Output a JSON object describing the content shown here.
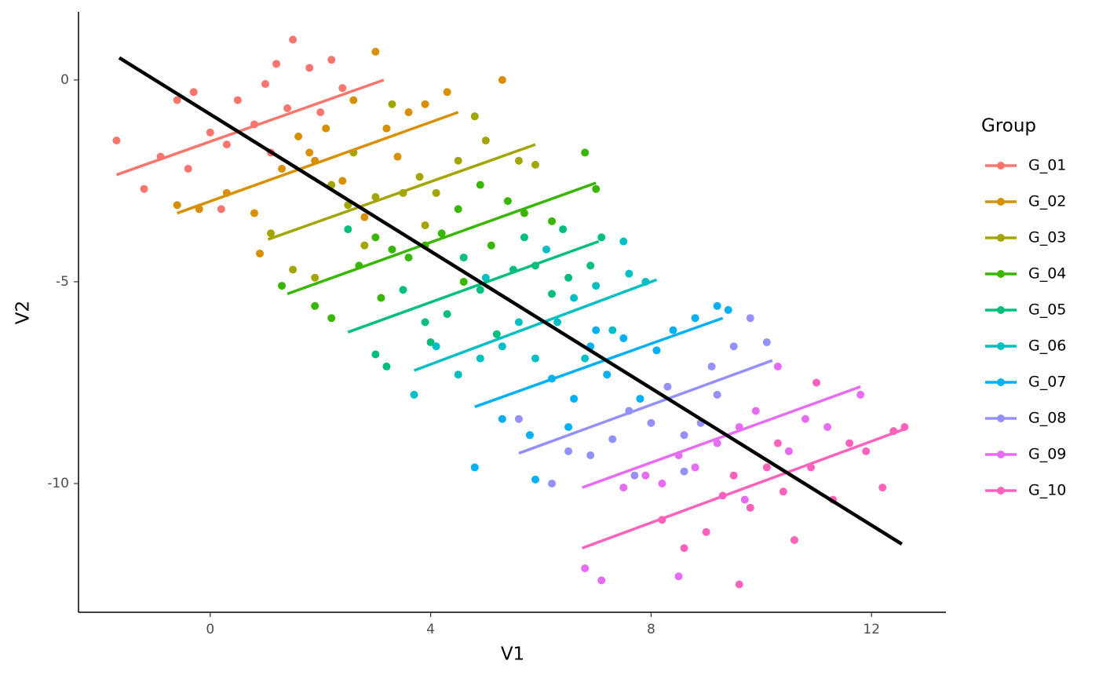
{
  "chart_data": {
    "type": "scatter",
    "x_label": "V1",
    "y_label": "V2",
    "legend_title": "Group",
    "xlim": [
      -2.39,
      13.35
    ],
    "ylim": [
      -13.19,
      1.69
    ],
    "xticks": [
      0,
      4,
      8,
      12
    ],
    "yticks": [
      0,
      -5,
      -10
    ],
    "legend": "right",
    "overall_fit": {
      "color": "#000000",
      "x": [
        -1.65,
        12.55
      ],
      "y": [
        0.55,
        -11.5
      ]
    },
    "series": [
      {
        "name": "G_01",
        "color": "#F8766D",
        "x": [
          -1.7,
          -1.2,
          -0.9,
          -0.6,
          -0.4,
          -0.3,
          0.0,
          0.3,
          0.5,
          0.8,
          1.0,
          1.2,
          1.4,
          1.5,
          1.8,
          2.0,
          2.2,
          2.4,
          1.1,
          0.2
        ],
        "y": [
          -1.5,
          -2.7,
          -1.9,
          -0.5,
          -2.2,
          -0.3,
          -1.3,
          -1.6,
          -0.5,
          -1.1,
          -0.1,
          0.4,
          -0.7,
          1.0,
          0.3,
          -0.8,
          0.5,
          -0.2,
          -1.8,
          -3.2
        ],
        "fit": {
          "x": [
            -1.7,
            3.15
          ],
          "y": [
            -2.35,
            0.0
          ]
        }
      },
      {
        "name": "G_02",
        "color": "#D89000",
        "x": [
          -0.6,
          -0.2,
          0.3,
          0.8,
          0.9,
          1.3,
          1.6,
          1.8,
          2.1,
          2.4,
          2.8,
          3.0,
          3.2,
          3.6,
          3.9,
          4.3,
          5.3,
          2.6,
          1.9,
          3.4
        ],
        "y": [
          -3.1,
          -3.2,
          -2.8,
          -3.3,
          -4.3,
          -2.2,
          -1.4,
          -1.8,
          -1.2,
          -2.5,
          -3.4,
          0.7,
          -1.2,
          -0.8,
          -0.6,
          -0.3,
          0.0,
          -0.5,
          -2.0,
          -1.9
        ],
        "fit": {
          "x": [
            -0.6,
            4.5
          ],
          "y": [
            -3.3,
            -0.8
          ]
        }
      },
      {
        "name": "G_03",
        "color": "#A3A500",
        "x": [
          1.1,
          1.5,
          1.9,
          2.2,
          2.5,
          2.8,
          3.0,
          3.3,
          3.5,
          3.8,
          4.1,
          4.5,
          4.8,
          5.0,
          5.6,
          5.9,
          2.6,
          3.9
        ],
        "y": [
          -3.8,
          -4.7,
          -4.9,
          -2.6,
          -3.1,
          -4.1,
          -2.9,
          -0.6,
          -2.8,
          -2.4,
          -2.8,
          -2.0,
          -0.9,
          -1.5,
          -2.0,
          -2.1,
          -1.8,
          -3.6
        ],
        "fit": {
          "x": [
            1.05,
            5.9
          ],
          "y": [
            -3.95,
            -1.6
          ]
        }
      },
      {
        "name": "G_04",
        "color": "#39B600",
        "x": [
          1.3,
          1.9,
          2.2,
          2.7,
          3.0,
          3.3,
          3.6,
          3.9,
          4.2,
          4.5,
          4.9,
          5.4,
          5.7,
          6.2,
          6.8,
          7.0,
          3.1,
          4.6,
          5.1
        ],
        "y": [
          -5.1,
          -5.6,
          -5.9,
          -4.6,
          -3.9,
          -4.2,
          -4.4,
          -4.1,
          -3.8,
          -3.2,
          -2.6,
          -3.0,
          -3.3,
          -3.5,
          -1.8,
          -2.7,
          -5.4,
          -5.0,
          -4.1
        ],
        "fit": {
          "x": [
            1.4,
            7.0
          ],
          "y": [
            -5.3,
            -2.55
          ]
        }
      },
      {
        "name": "G_05",
        "color": "#00BF7D",
        "x": [
          2.5,
          3.0,
          3.5,
          3.9,
          4.3,
          4.6,
          4.9,
          5.2,
          5.5,
          5.9,
          6.2,
          6.5,
          6.9,
          7.1,
          3.2,
          4.0,
          5.7,
          6.4
        ],
        "y": [
          -3.7,
          -6.8,
          -5.2,
          -6.0,
          -5.8,
          -4.4,
          -5.2,
          -6.3,
          -4.7,
          -4.6,
          -5.3,
          -4.9,
          -4.6,
          -3.9,
          -7.1,
          -6.5,
          -3.9,
          -3.7
        ],
        "fit": {
          "x": [
            2.5,
            7.05
          ],
          "y": [
            -6.25,
            -4.0
          ]
        }
      },
      {
        "name": "G_06",
        "color": "#00BFC4",
        "x": [
          3.7,
          4.1,
          4.5,
          4.9,
          5.3,
          5.6,
          5.9,
          6.3,
          6.6,
          7.0,
          7.3,
          7.6,
          7.9,
          6.1,
          5.0,
          6.8,
          7.5
        ],
        "y": [
          -7.8,
          -6.6,
          -7.3,
          -6.9,
          -6.6,
          -6.0,
          -6.9,
          -6.0,
          -5.4,
          -5.1,
          -6.2,
          -4.8,
          -5.0,
          -4.2,
          -4.9,
          -6.9,
          -4.0
        ],
        "fit": {
          "x": [
            3.7,
            8.1
          ],
          "y": [
            -7.2,
            -4.95
          ]
        }
      },
      {
        "name": "G_07",
        "color": "#00B0F6",
        "x": [
          4.8,
          5.3,
          5.8,
          6.2,
          6.6,
          6.9,
          7.2,
          7.5,
          7.8,
          8.1,
          8.4,
          8.8,
          9.2,
          9.4,
          5.9,
          6.5,
          7.0
        ],
        "y": [
          -9.6,
          -8.4,
          -8.8,
          -7.4,
          -7.9,
          -6.6,
          -7.3,
          -6.4,
          -7.9,
          -6.7,
          -6.2,
          -5.9,
          -5.6,
          -5.7,
          -9.9,
          -8.6,
          -6.2
        ],
        "fit": {
          "x": [
            4.8,
            9.3
          ],
          "y": [
            -8.1,
            -5.9
          ]
        }
      },
      {
        "name": "G_08",
        "color": "#9590FF",
        "x": [
          5.6,
          6.2,
          6.5,
          6.9,
          7.3,
          7.6,
          8.0,
          8.3,
          8.6,
          8.9,
          9.1,
          9.5,
          9.8,
          10.1,
          7.7,
          8.6,
          9.2
        ],
        "y": [
          -8.4,
          -10.0,
          -9.2,
          -9.3,
          -8.9,
          -8.2,
          -8.5,
          -7.6,
          -8.8,
          -8.5,
          -7.1,
          -6.6,
          -5.9,
          -6.5,
          -9.8,
          -9.7,
          -7.8
        ],
        "fit": {
          "x": [
            5.6,
            10.2
          ],
          "y": [
            -9.25,
            -6.95
          ]
        }
      },
      {
        "name": "G_09",
        "color": "#E76BF3",
        "x": [
          6.8,
          7.1,
          7.5,
          7.9,
          8.2,
          8.5,
          8.8,
          9.2,
          9.6,
          9.9,
          10.3,
          10.8,
          11.2,
          11.8,
          8.5,
          9.7,
          10.5
        ],
        "y": [
          -12.1,
          -12.4,
          -10.1,
          -9.8,
          -10.0,
          -9.3,
          -9.6,
          -9.0,
          -8.6,
          -8.2,
          -7.1,
          -8.4,
          -8.6,
          -7.8,
          -12.3,
          -10.4,
          -9.2
        ],
        "fit": {
          "x": [
            6.75,
            11.8
          ],
          "y": [
            -10.1,
            -7.6
          ]
        }
      },
      {
        "name": "G_10",
        "color": "#FF62BC",
        "x": [
          8.2,
          8.6,
          9.0,
          9.3,
          9.6,
          9.8,
          10.1,
          10.4,
          10.6,
          10.9,
          11.0,
          11.3,
          11.6,
          11.9,
          12.2,
          12.6,
          12.4,
          10.3,
          9.5
        ],
        "y": [
          -10.9,
          -11.6,
          -11.2,
          -10.3,
          -12.5,
          -10.6,
          -9.6,
          -10.2,
          -11.4,
          -9.6,
          -7.5,
          -10.4,
          -9.0,
          -9.2,
          -10.1,
          -8.6,
          -8.7,
          -9.0,
          -9.8
        ],
        "fit": {
          "x": [
            6.75,
            12.6
          ],
          "y": [
            -11.6,
            -8.65
          ]
        }
      }
    ]
  }
}
